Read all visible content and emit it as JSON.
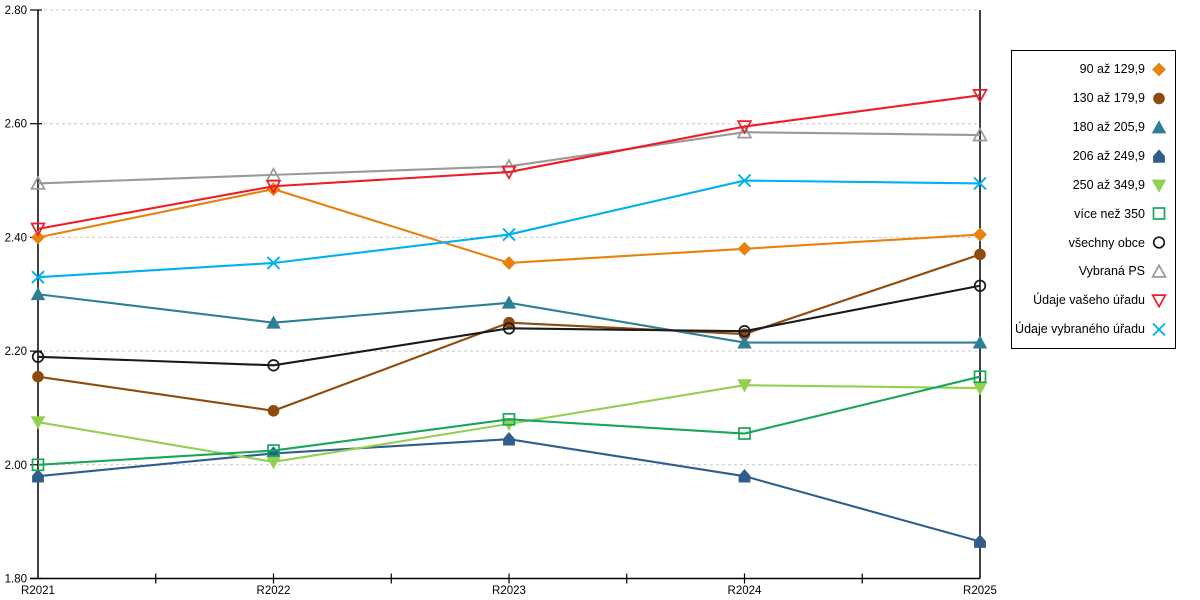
{
  "chart_data": {
    "type": "line",
    "categories": [
      "R2021",
      "R2022",
      "R2023",
      "R2024",
      "R2025"
    ],
    "series": [
      {
        "name": "90 až 129,9",
        "color": "#e8820e",
        "marker": "diamond",
        "filled": true,
        "values": [
          2.4,
          2.485,
          2.355,
          2.38,
          2.405
        ]
      },
      {
        "name": "130 až 179,9",
        "color": "#8f4b0e",
        "marker": "circle",
        "filled": true,
        "values": [
          2.155,
          2.095,
          2.25,
          2.23,
          2.37
        ]
      },
      {
        "name": "180 až 205,9",
        "color": "#2e7f96",
        "marker": "triangle-up",
        "filled": true,
        "values": [
          2.3,
          2.25,
          2.285,
          2.215,
          2.215
        ]
      },
      {
        "name": "206 až 249,9",
        "color": "#2f5d8c",
        "marker": "pentagon",
        "filled": true,
        "values": [
          1.98,
          2.02,
          2.045,
          1.98,
          1.865
        ]
      },
      {
        "name": "250 až 349,9",
        "color": "#92d050",
        "marker": "triangle-down",
        "filled": true,
        "values": [
          2.075,
          2.005,
          2.072,
          2.14,
          2.135
        ]
      },
      {
        "name": "více než 350",
        "color": "#17a65a",
        "marker": "square",
        "filled": false,
        "values": [
          2.0,
          2.025,
          2.08,
          2.055,
          2.155
        ]
      },
      {
        "name": "všechny obce",
        "color": "#1a1a1a",
        "marker": "circle",
        "filled": false,
        "values": [
          2.19,
          2.175,
          2.24,
          2.235,
          2.315
        ]
      },
      {
        "name": "Vybraná PS",
        "color": "#999999",
        "marker": "triangle-up",
        "filled": false,
        "values": [
          2.495,
          2.51,
          2.525,
          2.585,
          2.58
        ]
      },
      {
        "name": "Údaje vašeho úřadu",
        "color": "#ee1c25",
        "marker": "triangle-down",
        "filled": false,
        "values": [
          2.415,
          2.49,
          2.515,
          2.595,
          2.65
        ]
      },
      {
        "name": "Údaje vybraného úřadu",
        "color": "#00b0f0",
        "marker": "x",
        "filled": false,
        "values": [
          2.33,
          2.355,
          2.405,
          2.5,
          2.495
        ]
      }
    ],
    "title": "",
    "xlabel": "",
    "ylabel": "",
    "ylim": [
      1.8,
      2.8
    ],
    "ytick_step": 0.2,
    "ytick_labels": [
      "1.80",
      "2.00",
      "2.20",
      "2.40",
      "2.60",
      "2.80"
    ],
    "grid": "horizontal-dashed",
    "grid_color": "#c9c9c9",
    "axis_color": "#000000",
    "legend_position": "right"
  }
}
